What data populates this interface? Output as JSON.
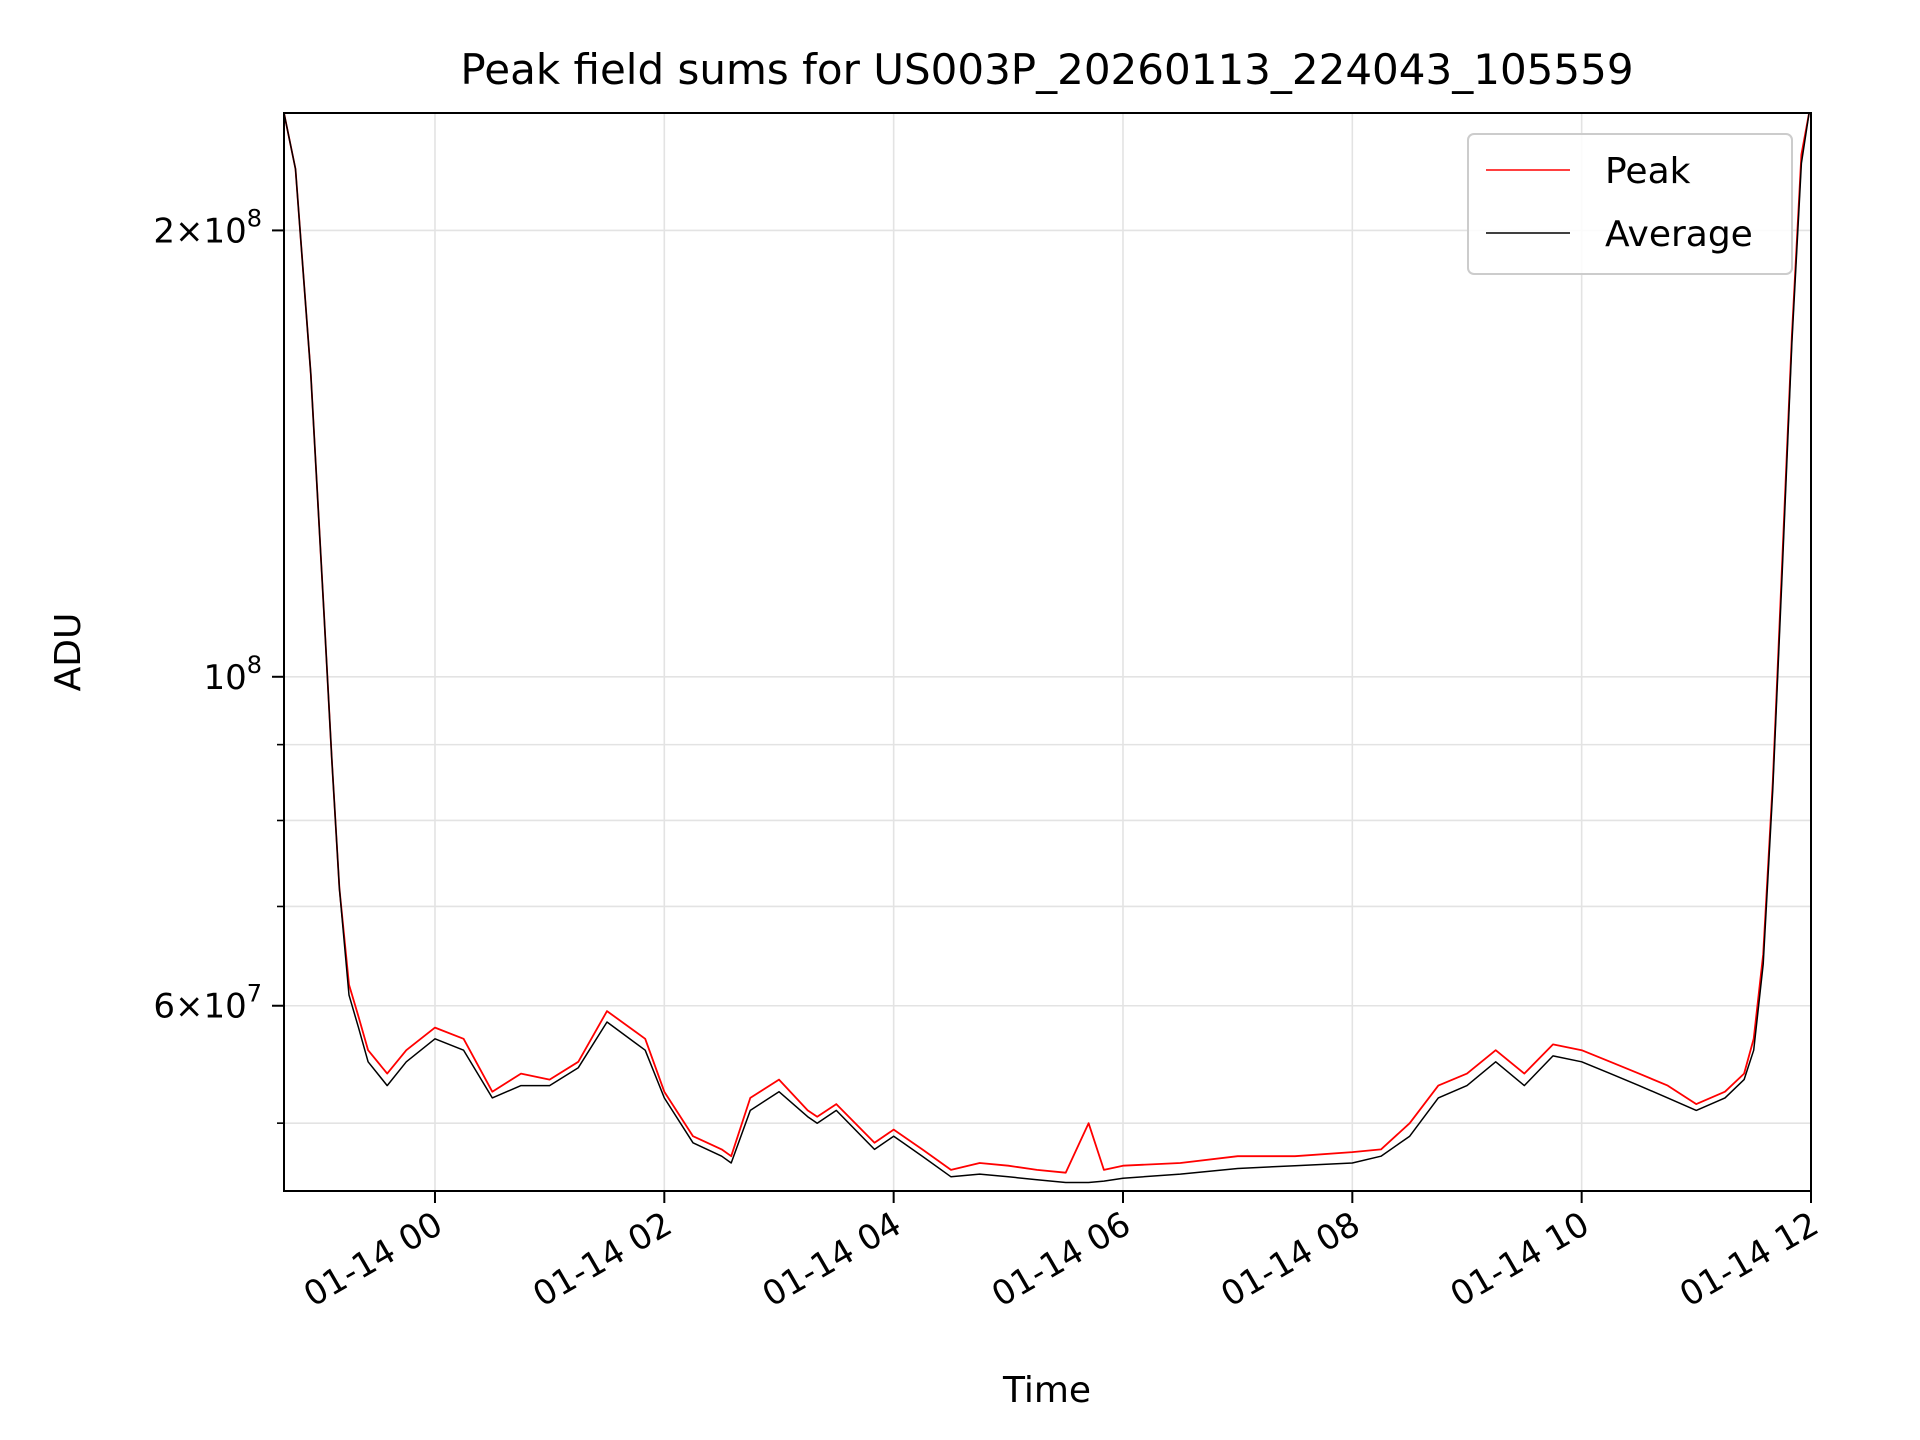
{
  "chart_data": {
    "type": "line",
    "title": "Peak field sums for US003P_20260113_224043_105559",
    "xlabel": "Time",
    "ylabel": "ADU",
    "y_scale": "log",
    "ylim": [
      45000000,
      240000000
    ],
    "xlim": [
      "01-13 22:41",
      "01-14 12:00"
    ],
    "grid": true,
    "legend_placement": "top-right",
    "x_ticks": [
      {
        "value": "01-14 00:00",
        "label": "01-14 00"
      },
      {
        "value": "01-14 02:00",
        "label": "01-14 02"
      },
      {
        "value": "01-14 04:00",
        "label": "01-14 04"
      },
      {
        "value": "01-14 06:00",
        "label": "01-14 06"
      },
      {
        "value": "01-14 08:00",
        "label": "01-14 08"
      },
      {
        "value": "01-14 10:00",
        "label": "01-14 10"
      },
      {
        "value": "01-14 12:00",
        "label": "01-14 12"
      }
    ],
    "y_major_ticks": [
      {
        "value": 60000000,
        "mantissa": "6",
        "exponent": "7"
      },
      {
        "value": 100000000,
        "mantissa": "",
        "exponent": "8"
      },
      {
        "value": 200000000,
        "mantissa": "2",
        "exponent": "8"
      }
    ],
    "y_minor_ticks": [
      50000000,
      70000000,
      80000000,
      90000000
    ],
    "series": [
      {
        "name": "Peak",
        "color": "#ff0000",
        "x": [
          "01-13 22:41",
          "01-13 22:47",
          "01-13 22:55",
          "01-13 23:02",
          "01-13 23:06",
          "01-13 23:10",
          "01-13 23:15",
          "01-13 23:20",
          "01-13 23:25",
          "01-13 23:35",
          "01-13 23:45",
          "01-14 00:00",
          "01-14 00:15",
          "01-14 00:30",
          "01-14 00:45",
          "01-14 01:00",
          "01-14 01:15",
          "01-14 01:30",
          "01-14 01:50",
          "01-14 02:00",
          "01-14 02:15",
          "01-14 02:30",
          "01-14 02:35",
          "01-14 02:45",
          "01-14 03:00",
          "01-14 03:15",
          "01-14 03:20",
          "01-14 03:30",
          "01-14 03:50",
          "01-14 04:00",
          "01-14 04:15",
          "01-14 04:30",
          "01-14 04:45",
          "01-14 05:00",
          "01-14 05:15",
          "01-14 05:30",
          "01-14 05:42",
          "01-14 05:50",
          "01-14 06:00",
          "01-14 06:30",
          "01-14 07:00",
          "01-14 07:30",
          "01-14 08:00",
          "01-14 08:15",
          "01-14 08:30",
          "01-14 08:45",
          "01-14 09:00",
          "01-14 09:15",
          "01-14 09:30",
          "01-14 09:45",
          "01-14 10:00",
          "01-14 10:15",
          "01-14 10:30",
          "01-14 10:45",
          "01-14 11:00",
          "01-14 11:15",
          "01-14 11:25",
          "01-14 11:30",
          "01-14 11:35",
          "01-14 11:40",
          "01-14 11:45",
          "01-14 11:50",
          "01-14 11:55",
          "01-14 11:59"
        ],
        "values": [
          240000000,
          220000000,
          160000000,
          110000000,
          88000000,
          72000000,
          62000000,
          59000000,
          56000000,
          54000000,
          56000000,
          58000000,
          57000000,
          52500000,
          54000000,
          53500000,
          55000000,
          59500000,
          57000000,
          52500000,
          49000000,
          48000000,
          47500000,
          52000000,
          53500000,
          51000000,
          50500000,
          51500000,
          48500000,
          49500000,
          48000000,
          46500000,
          47000000,
          46800000,
          46500000,
          46300000,
          50000000,
          46500000,
          46800000,
          47000000,
          47500000,
          47500000,
          47800000,
          48000000,
          50000000,
          53000000,
          54000000,
          56000000,
          54000000,
          56500000,
          56000000,
          55000000,
          54000000,
          53000000,
          51500000,
          52500000,
          54000000,
          57000000,
          65000000,
          85000000,
          120000000,
          170000000,
          225000000,
          240000000
        ]
      },
      {
        "name": "Average",
        "color": "#000000",
        "x": [
          "01-13 22:41",
          "01-13 22:47",
          "01-13 22:55",
          "01-13 23:02",
          "01-13 23:06",
          "01-13 23:10",
          "01-13 23:15",
          "01-13 23:20",
          "01-13 23:25",
          "01-13 23:35",
          "01-13 23:45",
          "01-14 00:00",
          "01-14 00:15",
          "01-14 00:30",
          "01-14 00:45",
          "01-14 01:00",
          "01-14 01:15",
          "01-14 01:30",
          "01-14 01:50",
          "01-14 02:00",
          "01-14 02:15",
          "01-14 02:30",
          "01-14 02:35",
          "01-14 02:45",
          "01-14 03:00",
          "01-14 03:15",
          "01-14 03:20",
          "01-14 03:30",
          "01-14 03:50",
          "01-14 04:00",
          "01-14 04:15",
          "01-14 04:30",
          "01-14 04:45",
          "01-14 05:00",
          "01-14 05:15",
          "01-14 05:30",
          "01-14 05:42",
          "01-14 05:50",
          "01-14 06:00",
          "01-14 06:30",
          "01-14 07:00",
          "01-14 07:30",
          "01-14 08:00",
          "01-14 08:15",
          "01-14 08:30",
          "01-14 08:45",
          "01-14 09:00",
          "01-14 09:15",
          "01-14 09:30",
          "01-14 09:45",
          "01-14 10:00",
          "01-14 10:15",
          "01-14 10:30",
          "01-14 10:45",
          "01-14 11:00",
          "01-14 11:15",
          "01-14 11:25",
          "01-14 11:30",
          "01-14 11:35",
          "01-14 11:40",
          "01-14 11:45",
          "01-14 11:50",
          "01-14 11:55",
          "01-14 11:59"
        ],
        "values": [
          240000000,
          220000000,
          160000000,
          110000000,
          88000000,
          72000000,
          61000000,
          58000000,
          55000000,
          53000000,
          55000000,
          57000000,
          56000000,
          52000000,
          53000000,
          53000000,
          54500000,
          58500000,
          56000000,
          52000000,
          48500000,
          47500000,
          47000000,
          51000000,
          52500000,
          50500000,
          50000000,
          51000000,
          48000000,
          49000000,
          47500000,
          46000000,
          46200000,
          46000000,
          45800000,
          45600000,
          45600000,
          45700000,
          45900000,
          46200000,
          46600000,
          46800000,
          47000000,
          47500000,
          49000000,
          52000000,
          53000000,
          55000000,
          53000000,
          55500000,
          55000000,
          54000000,
          53000000,
          52000000,
          51000000,
          52000000,
          53500000,
          56000000,
          64000000,
          84000000,
          118000000,
          168000000,
          222000000,
          240000000
        ]
      }
    ]
  }
}
